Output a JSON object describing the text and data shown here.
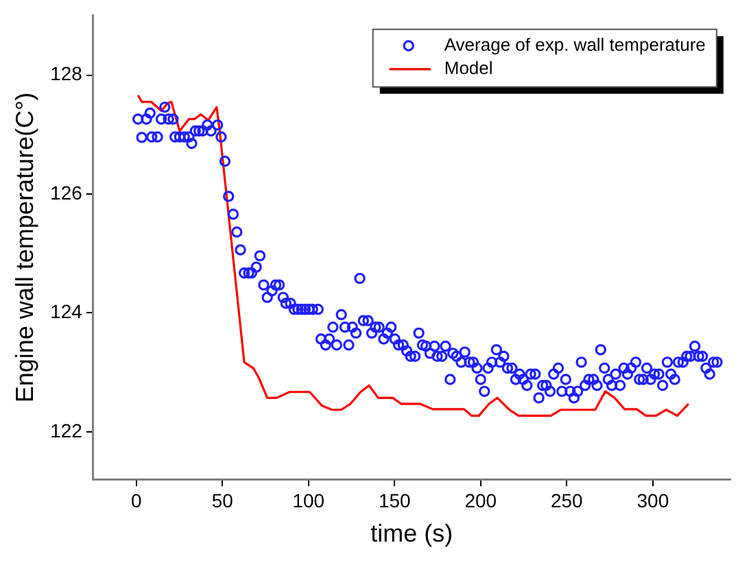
{
  "chart_data": {
    "type": "line",
    "xlabel": "time (s)",
    "ylabel": "Engine wall temperature(C°)",
    "xlim": [
      -25,
      345
    ],
    "ylim": [
      121.2,
      129
    ],
    "xticks": [
      0,
      50,
      100,
      150,
      200,
      250,
      300
    ],
    "yticks": [
      122,
      124,
      126,
      128
    ],
    "grid": false,
    "legend": "top right",
    "series": [
      {
        "name": "Average of exp. wall temperature",
        "type": "scatter",
        "marker": "circle",
        "color": "#1f1fff",
        "x": [
          1,
          3.2,
          5.9,
          8,
          9,
          12.3,
          14.5,
          16.6,
          18.7,
          21.4,
          22.5,
          25.2,
          27.9,
          30.6,
          32.2,
          34.3,
          36.5,
          38.6,
          41.3,
          43.4,
          47.2,
          49.3,
          51.5,
          53.6,
          56.3,
          58.4,
          60.5,
          62.7,
          65.3,
          67,
          69.7,
          71.8,
          74,
          76.1,
          78.8,
          81,
          83,
          85.3,
          86.9,
          89.6,
          91.7,
          93.9,
          96,
          98.1,
          100.3,
          102.4,
          105.6,
          107.3,
          110,
          112.1,
          114.2,
          116.4,
          119.1,
          121.2,
          123.4,
          125.5,
          127.6,
          129.8,
          131.9,
          134.6,
          136.8,
          138.9,
          141,
          143.7,
          145.8,
          148,
          150.2,
          152.3,
          155,
          157.1,
          159.3,
          161.9,
          164.1,
          166.2,
          168.3,
          170.6,
          173.2,
          174.8,
          177.5,
          179.6,
          182.3,
          183.9,
          186,
          188.7,
          190.8,
          193.5,
          195.7,
          197.9,
          200,
          202.2,
          204.3,
          206.5,
          209.2,
          211.3,
          213.4,
          215.6,
          218.2,
          220.4,
          222.6,
          224.7,
          226.9,
          229,
          231.7,
          233.8,
          236,
          238.1,
          240.3,
          242.4,
          245.1,
          247.2,
          249.4,
          252,
          254.2,
          256.3,
          258.5,
          260.7,
          262.8,
          265.5,
          267.6,
          269.7,
          271.9,
          274.1,
          276.2,
          278.4,
          281,
          283.2,
          285.3,
          287.4,
          290.1,
          292.2,
          294.4,
          296.5,
          298.7,
          300.9,
          303.5,
          305.7,
          308.4,
          310.5,
          312.7,
          314.8,
          317.5,
          319.7,
          321.8,
          324.4,
          326.6,
          328.8,
          330.9,
          333,
          335.2,
          337.3
        ],
        "values": [
          127.26,
          126.95,
          127.26,
          127.36,
          126.96,
          126.96,
          127.26,
          127.46,
          127.26,
          127.26,
          126.96,
          126.96,
          126.96,
          126.96,
          126.85,
          127.06,
          127.06,
          127.06,
          127.16,
          127.06,
          127.16,
          126.96,
          126.55,
          125.96,
          125.66,
          125.36,
          125.06,
          124.67,
          124.67,
          124.67,
          124.77,
          124.96,
          124.47,
          124.26,
          124.37,
          124.47,
          124.47,
          124.26,
          124.16,
          124.16,
          124.06,
          124.06,
          124.06,
          124.06,
          124.06,
          124.06,
          124.06,
          123.56,
          123.46,
          123.56,
          123.76,
          123.46,
          123.97,
          123.76,
          123.46,
          123.76,
          123.66,
          124.58,
          123.87,
          123.87,
          123.66,
          123.76,
          123.76,
          123.56,
          123.66,
          123.76,
          123.56,
          123.46,
          123.46,
          123.36,
          123.27,
          123.27,
          123.66,
          123.46,
          123.44,
          123.32,
          123.44,
          123.27,
          123.27,
          123.44,
          122.88,
          123.32,
          123.27,
          123.17,
          123.34,
          123.17,
          123.17,
          123.07,
          122.88,
          122.68,
          123.07,
          123.17,
          123.38,
          123.17,
          123.27,
          123.07,
          123.07,
          122.88,
          122.97,
          122.88,
          122.78,
          122.97,
          122.97,
          122.57,
          122.78,
          122.78,
          122.68,
          122.97,
          123.07,
          122.68,
          122.88,
          122.68,
          122.57,
          122.68,
          123.17,
          122.78,
          122.88,
          122.88,
          122.78,
          123.38,
          123.07,
          122.88,
          122.78,
          122.97,
          122.78,
          123.07,
          122.97,
          123.07,
          123.17,
          122.88,
          122.88,
          123.07,
          122.88,
          122.97,
          122.97,
          122.78,
          123.17,
          122.97,
          122.88,
          123.17,
          123.17,
          123.27,
          123.27,
          123.44,
          123.27,
          123.27,
          123.07,
          122.97,
          123.17,
          123.17
        ]
      },
      {
        "name": "Model",
        "marker": "none",
        "line_style": "solid",
        "color": "#ff0000",
        "x": [
          1,
          3.2,
          8.6,
          14.5,
          18.5,
          20.4,
          25.2,
          30.6,
          33.8,
          37.5,
          41.8,
          46.7,
          48.3,
          62.7,
          68,
          71.3,
          76.1,
          81.4,
          89,
          100.7,
          107.8,
          113.7,
          119.1,
          124.4,
          130.3,
          135.2,
          140.5,
          149,
          153.8,
          164.7,
          172.2,
          190.4,
          194.7,
          199,
          204.9,
          209.7,
          216.7,
          222,
          240.8,
          246.6,
          266.5,
          272.4,
          277.8,
          283.6,
          290.6,
          296,
          301.9,
          307.8,
          314.2,
          320.7
        ],
        "values": [
          127.66,
          127.55,
          127.55,
          127.4,
          127.53,
          127.55,
          127.06,
          127.26,
          127.26,
          127.34,
          127.24,
          127.46,
          127.1,
          123.17,
          123.07,
          122.9,
          122.57,
          122.57,
          122.67,
          122.67,
          122.44,
          122.37,
          122.37,
          122.47,
          122.67,
          122.78,
          122.57,
          122.57,
          122.47,
          122.47,
          122.38,
          122.38,
          122.27,
          122.27,
          122.47,
          122.57,
          122.37,
          122.27,
          122.27,
          122.37,
          122.37,
          122.68,
          122.57,
          122.38,
          122.38,
          122.27,
          122.27,
          122.37,
          122.27,
          122.47
        ]
      }
    ]
  }
}
